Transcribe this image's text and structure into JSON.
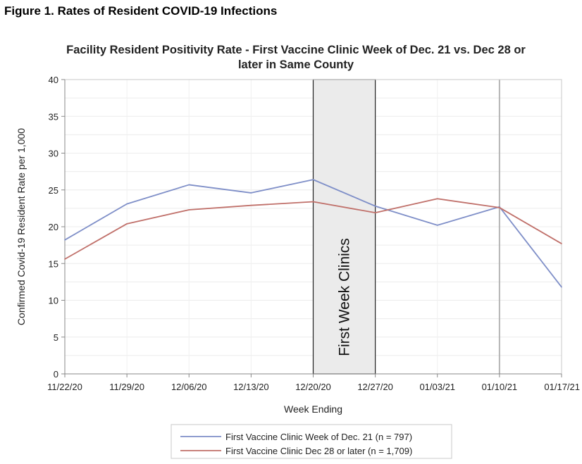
{
  "figure_label": "Figure 1. Rates of Resident COVID-19 Infections",
  "chart_data": {
    "type": "line",
    "title_lines": [
      "Facility Resident Positivity Rate - First Vaccine Clinic Week of Dec. 21 vs. Dec 28 or",
      "later in Same County"
    ],
    "categories": [
      "11/22/20",
      "11/29/20",
      "12/06/20",
      "12/13/20",
      "12/20/20",
      "12/27/20",
      "01/03/21",
      "01/10/21",
      "01/17/21"
    ],
    "xlabel": "Week Ending",
    "ylabel": "Confirmed Covid-19 Resident Rate per 1,000",
    "ylim": [
      0,
      40
    ],
    "yticks": [
      0,
      5,
      10,
      15,
      20,
      25,
      30,
      35,
      40
    ],
    "grid": true,
    "legend_position": "bottom",
    "series": [
      {
        "name": "First Vaccine Clinic Week of Dec. 21 (n = 797)",
        "color": "#7f8fc8",
        "values": [
          18.2,
          23.1,
          25.7,
          24.6,
          26.4,
          22.8,
          20.2,
          22.7,
          11.8
        ]
      },
      {
        "name": "First Vaccine Clinic Dec 28 or later (n = 1,709)",
        "color": "#c0706a",
        "values": [
          15.6,
          20.4,
          22.3,
          22.9,
          23.4,
          21.9,
          23.8,
          22.6,
          17.7
        ]
      }
    ],
    "shaded_region": {
      "label": "First Week Clinics",
      "from": "12/20/20",
      "to": "12/27/20"
    },
    "reference_line": {
      "x": "01/10/21",
      "color": "#b4b4b4"
    }
  }
}
